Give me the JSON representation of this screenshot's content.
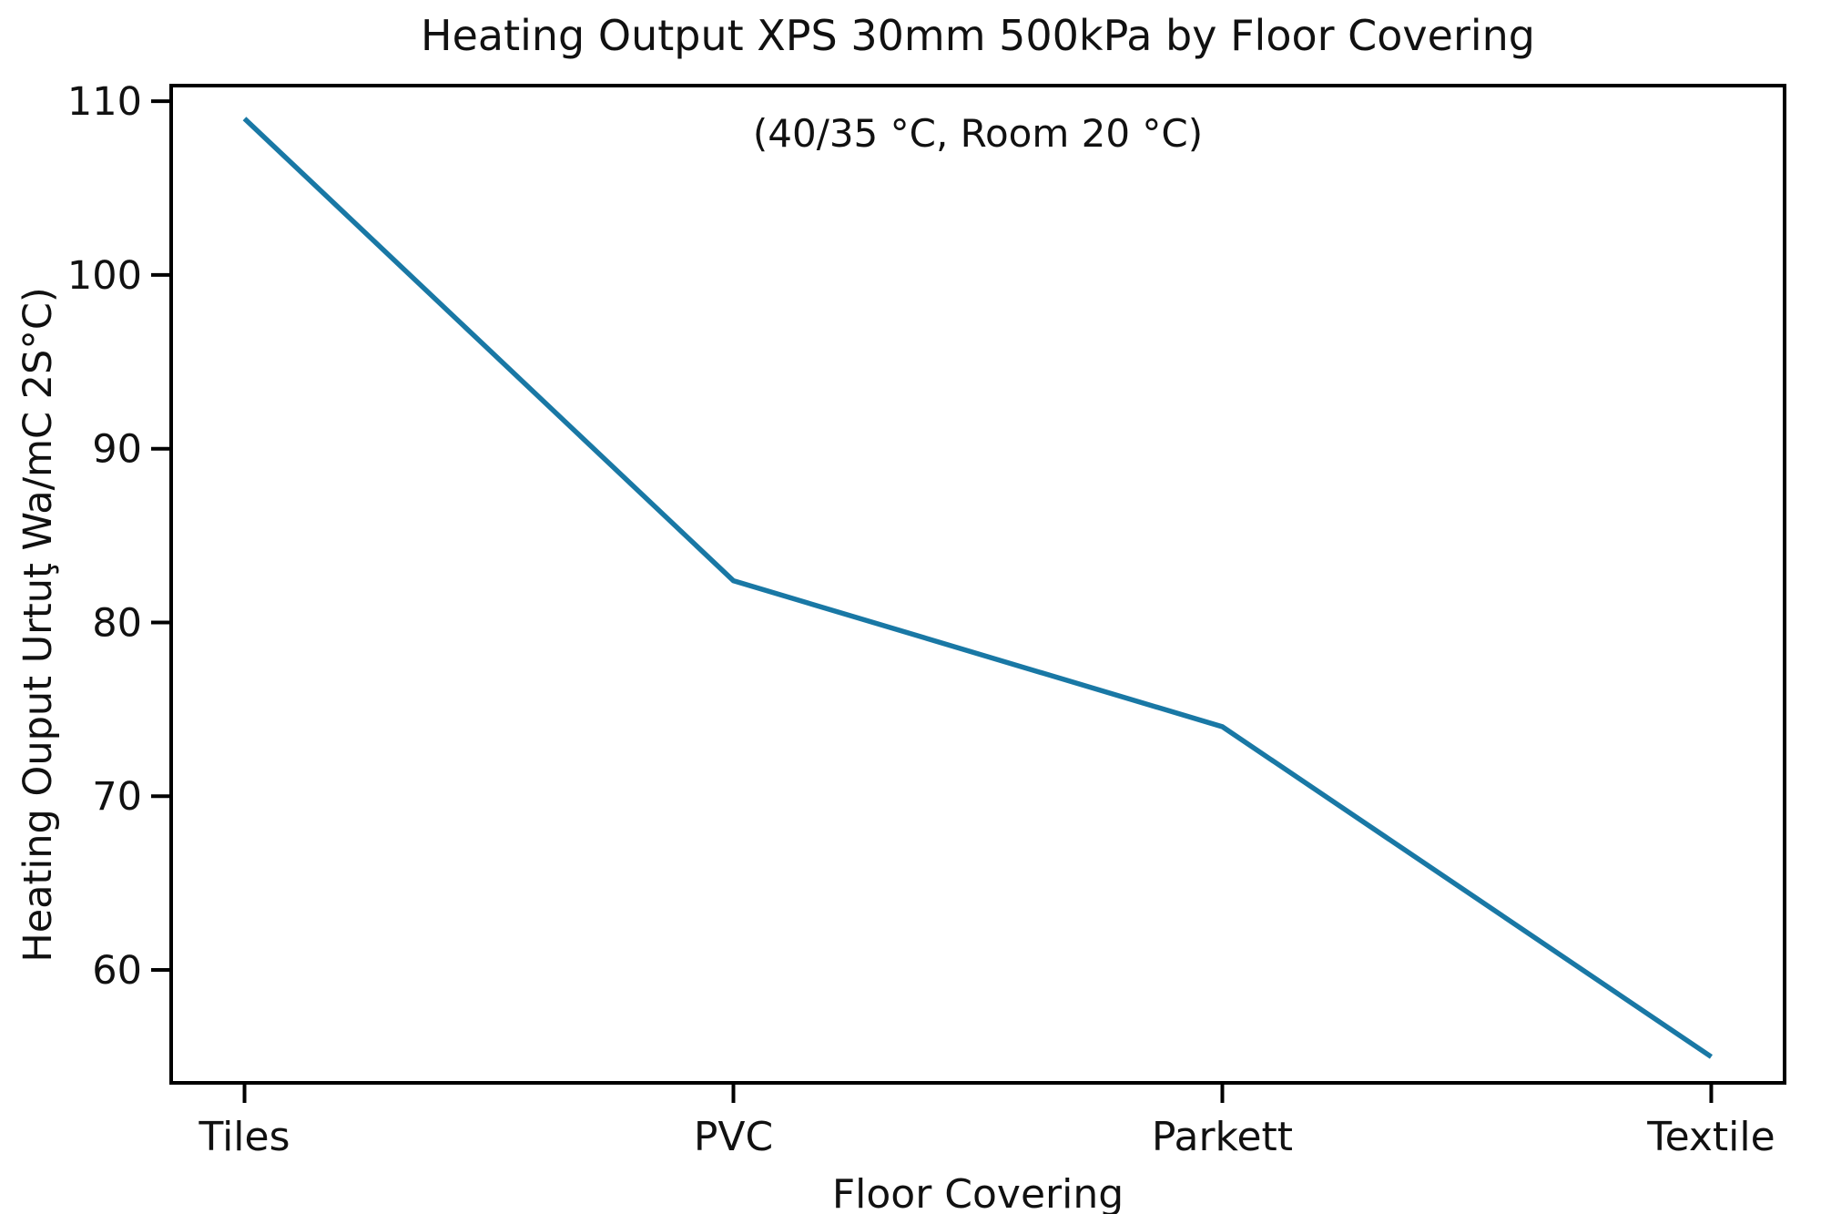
{
  "chart_data": {
    "type": "line",
    "title": "Heating Output XPS 30mm 500kPa by Floor Covering",
    "annotation": "(40/35 °C, Room 20 °C)",
    "xlabel": "Floor Covering",
    "ylabel": "Heating Ouput Urtuţ Wa/mC 2S°C)",
    "categories": [
      "Tiles",
      "PVC",
      "Parkett",
      "Textile"
    ],
    "series": [
      {
        "name": "Heating Output",
        "values": [
          109,
          82.4,
          74,
          55
        ]
      }
    ],
    "yticks": [
      110,
      100,
      90,
      80,
      70,
      60
    ],
    "ylim": [
      53.5,
      110.9
    ],
    "grid": false,
    "legend": "none",
    "line_color": "#1978a5",
    "axis_color": "#000000",
    "background_color": "#ffffff"
  }
}
